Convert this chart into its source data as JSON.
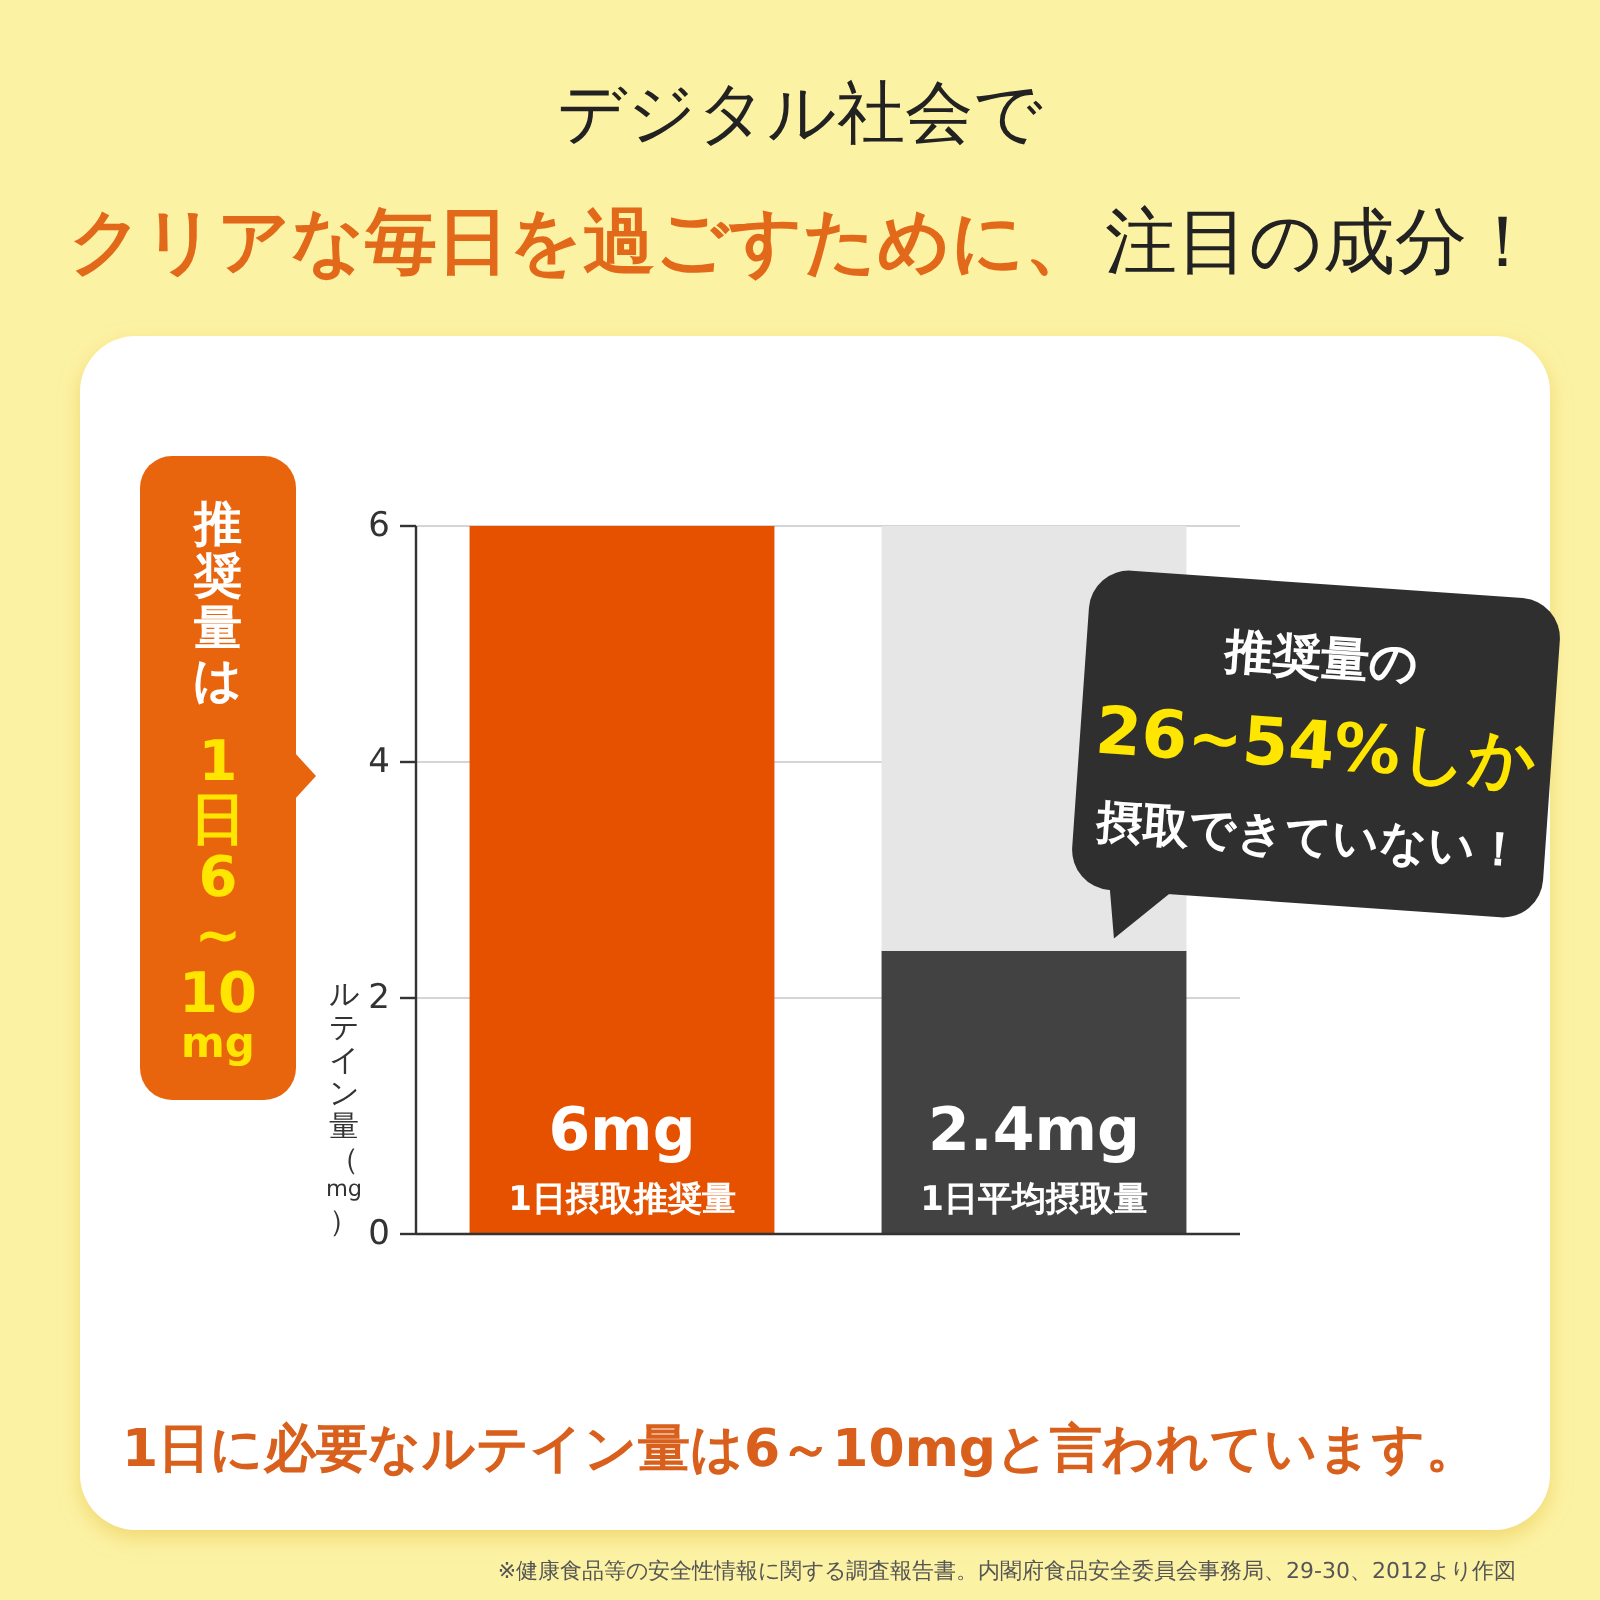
{
  "chart_data": {
    "type": "bar",
    "title": "デジタル社会で",
    "subtitle": "クリアな毎日を過ごすために、",
    "ylabel": "ルテイン量（mg）",
    "categories": [
      "1日摂取推奨量",
      "1日平均摂取量"
    ],
    "stacked": true,
    "series": [
      {
        "values": [
          6,
          2.4
        ],
        "colors": [
          "#e65100",
          "#424242"
        ],
        "value_labels": [
          "6mg",
          "2.4mg"
        ]
      },
      {
        "values": [
          null,
          3.6
        ],
        "color": "#e6e6e6"
      }
    ],
    "ylim": [
      0,
      6
    ],
    "yticks": [
      0,
      2,
      4,
      6
    ],
    "grid": "y",
    "annotations": [
      "注目の成分！",
      "推奨量は",
      "1日6~10mg",
      "推奨量の",
      "26~54%しか",
      "摂取できていない！",
      "1日に必要なルテイン量は6～10mgと言われています。",
      "※健康食品等の安全性情報に関する調査報告書。内閣府食品安全委員会事務局、29-30、2012より作図"
    ]
  }
}
